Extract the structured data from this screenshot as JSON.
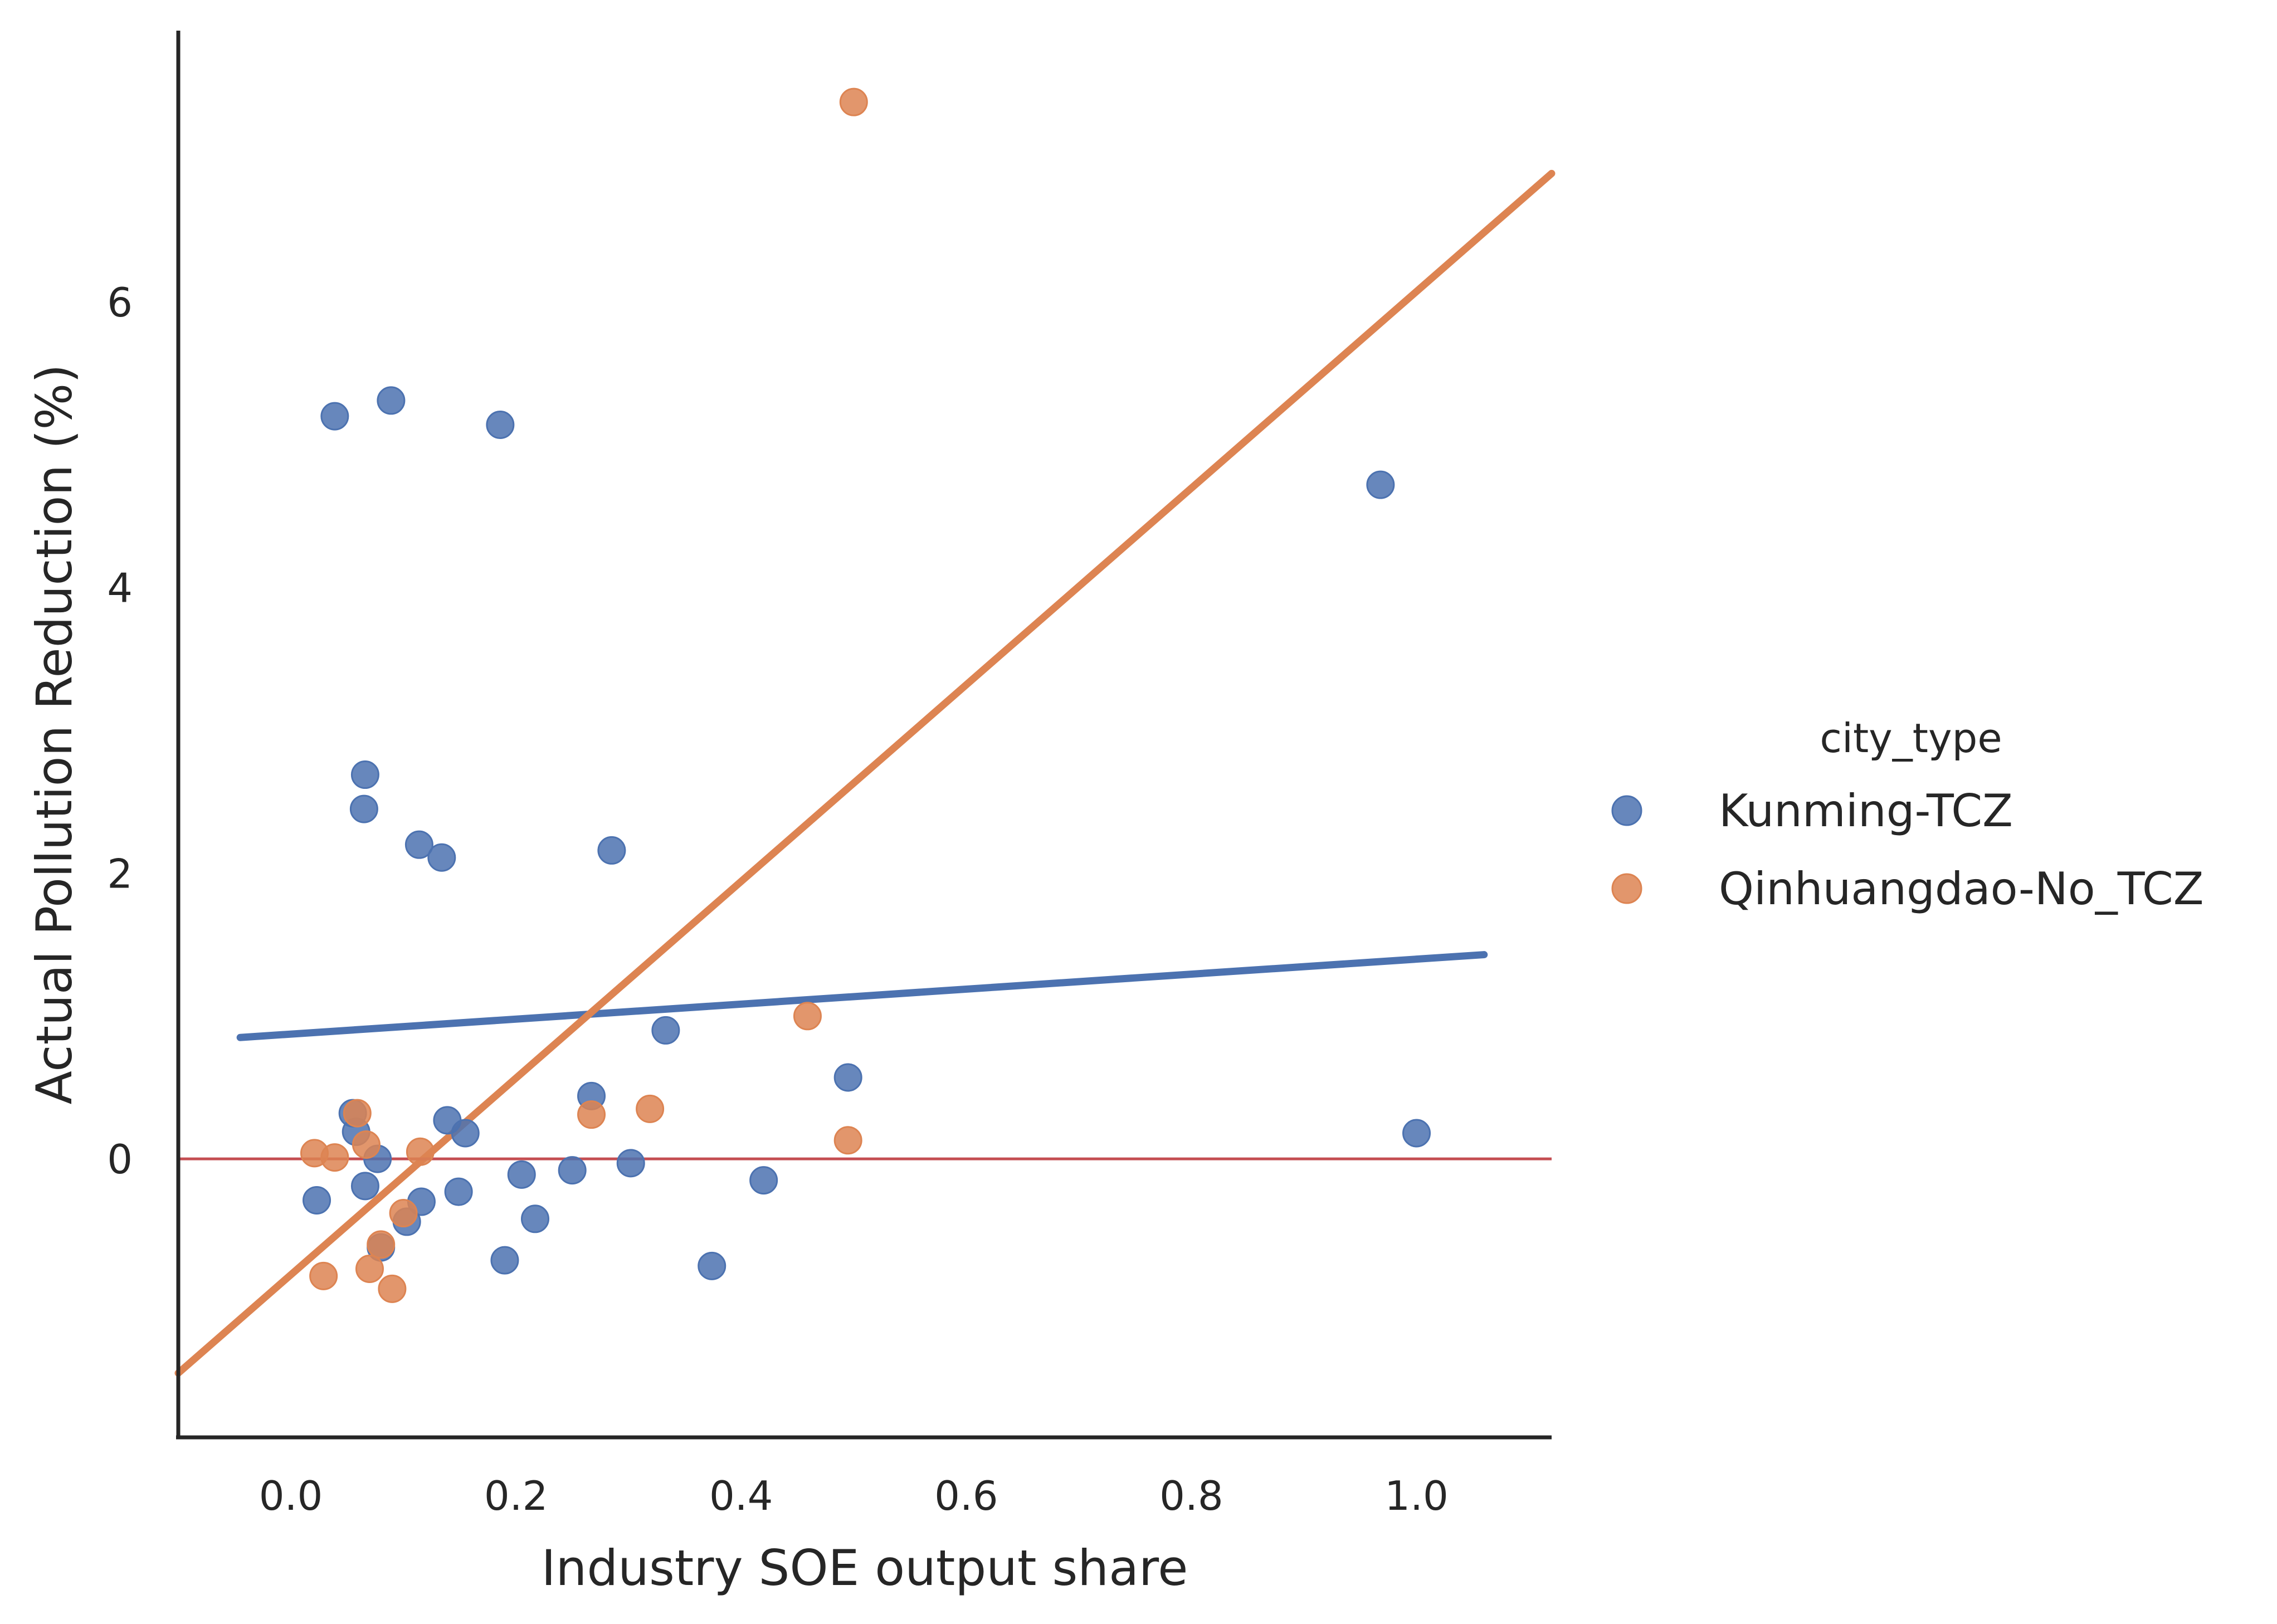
{
  "chart_data": {
    "type": "scatter",
    "xlabel": "Industry SOE output share",
    "ylabel": "Actual Pollution Reduction (%)",
    "xlim": [
      -0.1,
      1.12
    ],
    "ylim": [
      -1.95,
      7.9
    ],
    "xticks": [
      0.0,
      0.2,
      0.4,
      0.6,
      0.8,
      1.0
    ],
    "xtick_labels": [
      "0.0",
      "0.2",
      "0.4",
      "0.6",
      "0.8",
      "1.0"
    ],
    "yticks": [
      0,
      2,
      4,
      6
    ],
    "ytick_labels": [
      "0",
      "2",
      "4",
      "6"
    ],
    "grid": false,
    "reference_line": {
      "y": 0,
      "color": "#c44e52"
    },
    "legend": {
      "title": "city_type",
      "placement": "right"
    },
    "series": [
      {
        "name": "Kunming-TCZ",
        "color": "#4c72b0",
        "points": [
          [
            0.039,
            5.2
          ],
          [
            0.089,
            5.31
          ],
          [
            0.186,
            5.14
          ],
          [
            0.968,
            4.72
          ],
          [
            0.066,
            2.69
          ],
          [
            0.065,
            2.45
          ],
          [
            0.114,
            2.2
          ],
          [
            0.134,
            2.11
          ],
          [
            0.285,
            2.16
          ],
          [
            0.333,
            0.9
          ],
          [
            0.267,
            0.44
          ],
          [
            0.495,
            0.57
          ],
          [
            0.139,
            0.27
          ],
          [
            0.155,
            0.18
          ],
          [
            0.055,
            0.32
          ],
          [
            0.058,
            0.19
          ],
          [
            0.077,
            0.0
          ],
          [
            1.0,
            0.18
          ],
          [
            0.023,
            -0.29
          ],
          [
            0.066,
            -0.19
          ],
          [
            0.116,
            -0.3
          ],
          [
            0.103,
            -0.44
          ],
          [
            0.149,
            -0.23
          ],
          [
            0.205,
            -0.11
          ],
          [
            0.217,
            -0.42
          ],
          [
            0.25,
            -0.08
          ],
          [
            0.302,
            -0.03
          ],
          [
            0.42,
            -0.15
          ],
          [
            0.08,
            -0.62
          ],
          [
            0.19,
            -0.71
          ],
          [
            0.374,
            -0.75
          ]
        ],
        "fit": {
          "x": [
            -0.045,
            1.06
          ],
          "y": [
            0.85,
            1.43
          ]
        }
      },
      {
        "name": "Qinhuangdao-No_TCZ",
        "color": "#dd8452",
        "points": [
          [
            0.5,
            7.4
          ],
          [
            0.459,
            1.0
          ],
          [
            0.319,
            0.35
          ],
          [
            0.267,
            0.31
          ],
          [
            0.495,
            0.13
          ],
          [
            0.059,
            0.32
          ],
          [
            0.067,
            0.1
          ],
          [
            0.115,
            0.05
          ],
          [
            0.021,
            0.04
          ],
          [
            0.039,
            0.01
          ],
          [
            0.1,
            -0.38
          ],
          [
            0.08,
            -0.6
          ],
          [
            0.029,
            -0.82
          ],
          [
            0.07,
            -0.77
          ],
          [
            0.09,
            -0.91
          ]
        ],
        "fit": {
          "x": [
            -0.1,
            1.12
          ],
          "y": [
            -1.5,
            6.9
          ]
        }
      }
    ]
  }
}
